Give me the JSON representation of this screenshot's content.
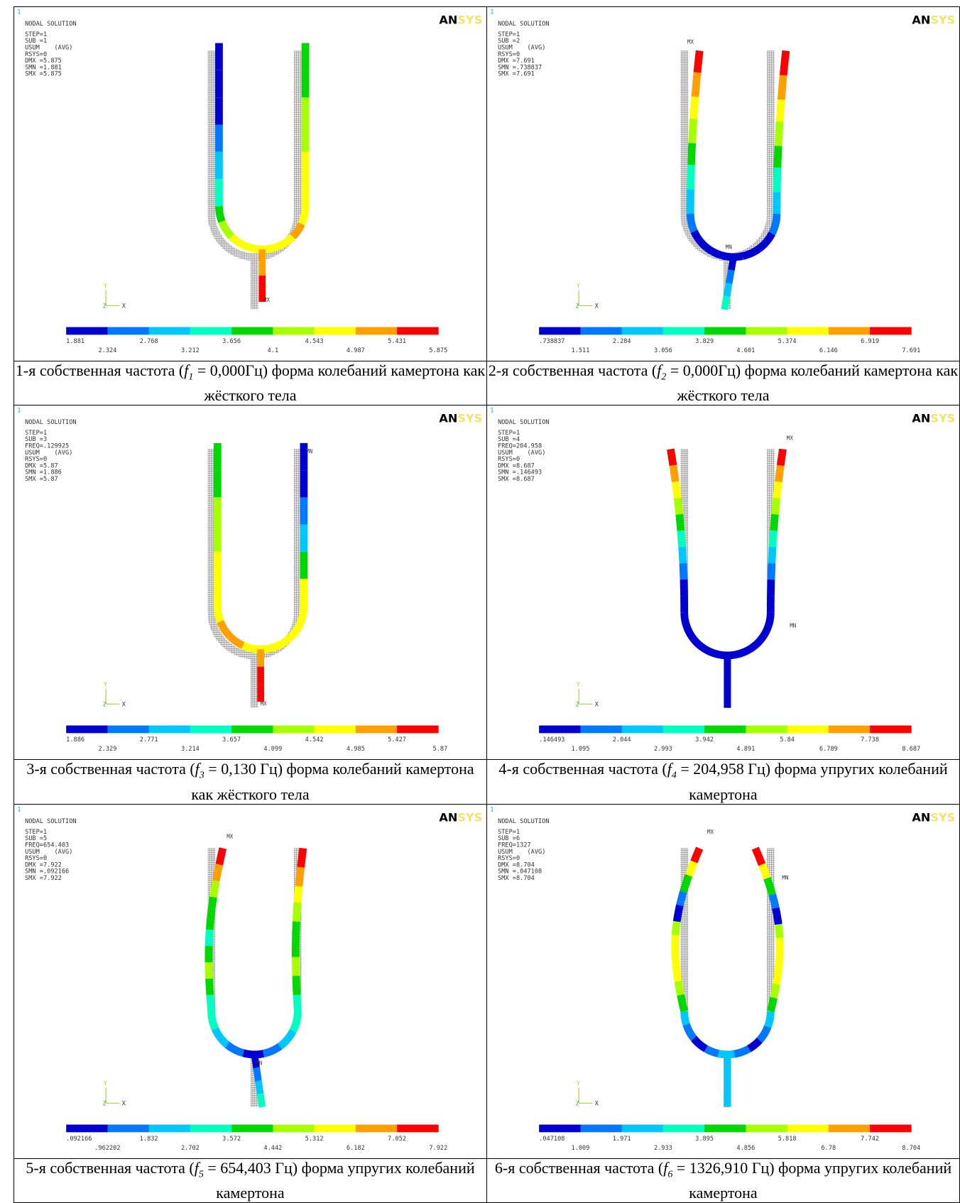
{
  "panels": [
    {
      "index_mark": "1",
      "header": "NODAL SOLUTION",
      "info": [
        "STEP=1",
        "SUB =1",
        "USUM    (AVG)",
        "RSYS=0",
        "DMX =5.875",
        "SMN =1.881",
        "SMX =5.875"
      ],
      "logo": {
        "an": "AN",
        "sys": "SYS"
      },
      "legend": [
        "1.881",
        "2.324",
        "2.768",
        "3.212",
        "3.656",
        "4.1",
        "4.543",
        "4.987",
        "5.431",
        "5.875"
      ],
      "triad": {
        "y": "Y",
        "z": "Z",
        "x": "X"
      },
      "markers": [
        "MX"
      ],
      "caption": {
        "before": "1-я собственная частота (",
        "var": "f",
        "sub": "1",
        "after": " = 0,000Гц) форма колебаний камертона как жёсткого тела"
      }
    },
    {
      "index_mark": "1",
      "header": "NODAL SOLUTION",
      "info": [
        "STEP=1",
        "SUB =2",
        "USUM    (AVG)",
        "RSYS=0",
        "DMX =7.691",
        "SMN =.738837",
        "SMX =7.691"
      ],
      "logo": {
        "an": "AN",
        "sys": "SYS"
      },
      "legend": [
        ".738837",
        "1.511",
        "2.284",
        "3.056",
        "3.829",
        "4.601",
        "5.374",
        "6.146",
        "6.919",
        "7.691"
      ],
      "triad": {
        "y": "Y",
        "z": "Z",
        "x": "X"
      },
      "markers": [
        "MX",
        "MN"
      ],
      "caption": {
        "before": "2-я собственная частота (",
        "var": "f",
        "sub": "2",
        "after": " = 0,000Гц) форма колебаний камертона как жёсткого тела"
      }
    },
    {
      "index_mark": "1",
      "header": "NODAL SOLUTION",
      "info": [
        "STEP=1",
        "SUB =3",
        "FREQ=.129925",
        "USUM    (AVG)",
        "RSYS=0",
        "DMX =5.87",
        "SMN =1.886",
        "SMX =5.87"
      ],
      "logo": {
        "an": "AN",
        "sys": "SYS"
      },
      "legend": [
        "1.886",
        "2.329",
        "2.771",
        "3.214",
        "3.657",
        "4.099",
        "4.542",
        "4.985",
        "5.427",
        "5.87"
      ],
      "triad": {
        "y": "Y",
        "z": "Z",
        "x": "X"
      },
      "markers": [
        "MN",
        "MX"
      ],
      "caption": {
        "before": "3-я собственная частота (",
        "var": "f",
        "sub": "3",
        "after": " = 0,130 Гц) форма колебаний камертона как жёсткого тела"
      }
    },
    {
      "index_mark": "1",
      "header": "NODAL SOLUTION",
      "info": [
        "STEP=1",
        "SUB =4",
        "FREQ=204.958",
        "USUM    (AVG)",
        "RSYS=0",
        "DMX =8.687",
        "SMN =.146493",
        "SMX =8.687"
      ],
      "logo": {
        "an": "AN",
        "sys": "SYS"
      },
      "legend": [
        ".146493",
        "1.095",
        "2.044",
        "2.993",
        "3.942",
        "4.891",
        "5.84",
        "6.789",
        "7.738",
        "8.687"
      ],
      "triad": {
        "y": "Y",
        "z": "Z",
        "x": "X"
      },
      "markers": [
        "MX",
        "MN"
      ],
      "caption": {
        "before": "4-я собственная частота (",
        "var": "f",
        "sub": "4",
        "after": " = 204,958 Гц) форма упругих колебаний камертона"
      }
    },
    {
      "index_mark": "1",
      "header": "NODAL SOLUTION",
      "info": [
        "STEP=1",
        "SUB =5",
        "FREQ=654.403",
        "USUM    (AVG)",
        "RSYS=0",
        "DMX =7.922",
        "SMN =.092166",
        "SMX =7.922"
      ],
      "logo": {
        "an": "AN",
        "sys": "SYS"
      },
      "legend": [
        ".092166",
        ".962202",
        "1.832",
        "2.702",
        "3.572",
        "4.442",
        "5.312",
        "6.182",
        "7.052",
        "7.922"
      ],
      "triad": {
        "y": "Y",
        "z": "Z",
        "x": "X"
      },
      "markers": [
        "MX",
        "MN"
      ],
      "caption": {
        "before": "5-я собственная частота (",
        "var": "f",
        "sub": "5",
        "after": " = 654,403 Гц) форма упругих колебаний камертона"
      }
    },
    {
      "index_mark": "1",
      "header": "NODAL SOLUTION",
      "info": [
        "STEP=1",
        "SUB =6",
        "FREQ=1327",
        "USUM    (AVG)",
        "RSYS=0",
        "DMX =8.704",
        "SMN =.047108",
        "SMX =8.704"
      ],
      "logo": {
        "an": "AN",
        "sys": "SYS"
      },
      "legend": [
        ".047108",
        "1.009",
        "1.971",
        "2.933",
        "3.895",
        "4.856",
        "5.818",
        "6.78",
        "7.742",
        "8.704"
      ],
      "triad": {
        "y": "Y",
        "z": "Z",
        "x": "X"
      },
      "markers": [
        "MX",
        "MN"
      ],
      "caption": {
        "before": "6-я собственная частота (",
        "var": "f",
        "sub": "6",
        "after": " = 1326,910 Гц) форма упругих колебаний камертона"
      }
    }
  ]
}
